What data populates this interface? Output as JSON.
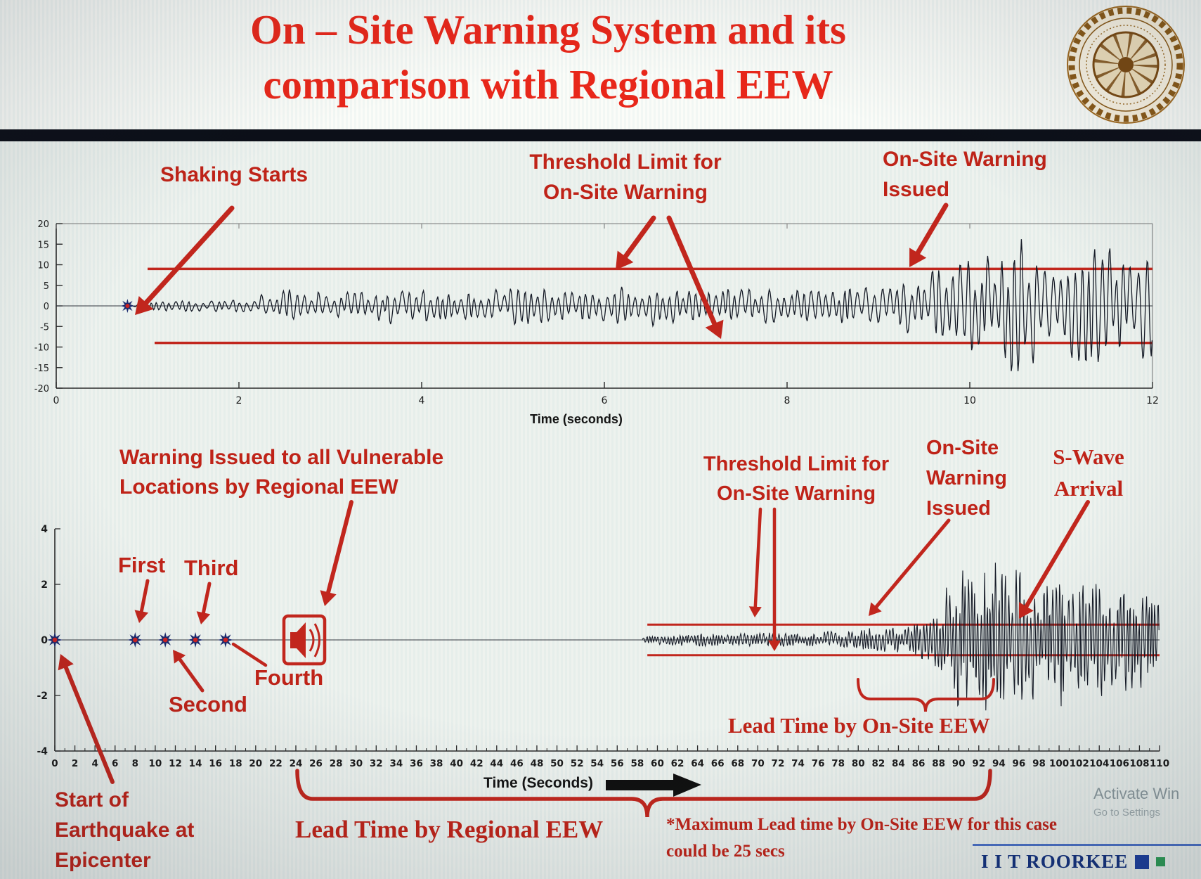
{
  "header": {
    "title_line1": "On – Site Warning System and its",
    "title_line2": "comparison with Regional EEW"
  },
  "icons": {
    "logo": "iit-roorkee-seal",
    "regional_warning": "alarm-speaker-icon",
    "p_wave_marker": "starburst-marker"
  },
  "colors": {
    "title_red": "#e8271a",
    "accent_red": "#bf2318",
    "threshold_red": "#c1261d",
    "waveform_ink": "#151a26",
    "brand_navy": "#14327e"
  },
  "top_chart": {
    "annotations": {
      "shaking_starts": "Shaking Starts",
      "threshold_limit_line1": "Threshold Limit for",
      "threshold_limit_line2": "On-Site Warning",
      "warning_issued_line1": "On-Site Warning",
      "warning_issued_line2": "Issued"
    }
  },
  "bottom_chart": {
    "annotations": {
      "regional_warning_line1": "Warning Issued to all Vulnerable",
      "regional_warning_line2": "Locations by Regional EEW",
      "first": "First",
      "second": "Second",
      "third": "Third",
      "fourth": "Fourth",
      "start_epicenter_line1": "Start of",
      "start_epicenter_line2": "Earthquake at",
      "start_epicenter_line3": "Epicenter",
      "threshold_limit_line1": "Threshold Limit for",
      "threshold_limit_line2": "On-Site Warning",
      "onsite_issued_line1": "On-Site",
      "onsite_issued_line2": "Warning",
      "onsite_issued_line3": "Issued",
      "s_wave_line1": "S-Wave",
      "s_wave_line2": "Arrival",
      "lead_time_onsite": "Lead Time by On-Site EEW",
      "lead_time_regional": "Lead Time by Regional EEW",
      "max_lead_note_line1": "*Maximum Lead time by On-Site EEW for this case",
      "max_lead_note_line2": "could be 25 secs"
    }
  },
  "footer": {
    "brand": "I I T ROORKEE",
    "activation_line1": "Activate Win",
    "activation_line2": "Go to Settings"
  },
  "chart_data": [
    {
      "type": "line",
      "name": "onsite-accelerogram",
      "title": "",
      "xlabel": "Time (seconds)",
      "ylabel": "",
      "xlim": [
        0,
        12
      ],
      "xticks": [
        0,
        2,
        4,
        6,
        8,
        10,
        12
      ],
      "ylim": [
        -20,
        20
      ],
      "yticks": [
        20,
        15,
        10,
        5,
        0,
        -5,
        -10,
        -15,
        -20
      ],
      "threshold_upper": 9,
      "threshold_lower": -9,
      "threshold_x_start": 1.0,
      "shaking_start_t": 0.78,
      "onsite_warning_issued_t": 9.3,
      "amplitude_envelope": [
        [
          0.78,
          0.4
        ],
        [
          1.1,
          1.3
        ],
        [
          2.1,
          1.6
        ],
        [
          2.5,
          4.8
        ],
        [
          3.1,
          3.2
        ],
        [
          3.7,
          4.6
        ],
        [
          4.4,
          3.6
        ],
        [
          5.1,
          4.8
        ],
        [
          5.8,
          3.8
        ],
        [
          6.4,
          5.2
        ],
        [
          7.0,
          4.0
        ],
        [
          7.7,
          4.6
        ],
        [
          8.3,
          3.8
        ],
        [
          8.9,
          5.0
        ],
        [
          9.3,
          6.5
        ],
        [
          9.7,
          9.5
        ],
        [
          10.1,
          13
        ],
        [
          10.5,
          17
        ],
        [
          10.9,
          13
        ],
        [
          11.3,
          16.5
        ],
        [
          11.7,
          13
        ],
        [
          12,
          15
        ]
      ]
    },
    {
      "type": "line",
      "name": "regional-vs-onsite-timeline",
      "title": "",
      "xlabel": "Time (Seconds)",
      "ylabel": "",
      "xlim": [
        0,
        110
      ],
      "xtick_step": 2,
      "ylim": [
        -4,
        4
      ],
      "yticks": [
        -4,
        -2,
        0,
        2,
        4
      ],
      "threshold_upper": 0.55,
      "threshold_lower": -0.55,
      "threshold_x_span": [
        59,
        110
      ],
      "p_wave_detections": [
        {
          "label": "Start of Earthquake at Epicenter",
          "t": 0
        },
        {
          "label": "First",
          "t": 8
        },
        {
          "label": "Second",
          "t": 11
        },
        {
          "label": "Third",
          "t": 14
        },
        {
          "label": "Fourth",
          "t": 17
        }
      ],
      "regional_warning_issued_t": 23,
      "onsite_warning_issued_t": 80,
      "s_wave_arrival_t": 93,
      "lead_time_regional_span": [
        24,
        93
      ],
      "lead_time_onsite_span": [
        80,
        93.5
      ],
      "max_lead_time_onsite_secs": 25,
      "amplitude_envelope": [
        [
          58.5,
          0.12
        ],
        [
          61,
          0.2
        ],
        [
          64,
          0.25
        ],
        [
          67,
          0.2
        ],
        [
          70,
          0.28
        ],
        [
          73,
          0.24
        ],
        [
          76,
          0.3
        ],
        [
          79,
          0.35
        ],
        [
          82,
          0.45
        ],
        [
          84,
          0.5
        ],
        [
          86,
          0.7
        ],
        [
          87.5,
          1.0
        ],
        [
          89,
          2.2
        ],
        [
          90.5,
          3.0
        ],
        [
          92,
          2.3
        ],
        [
          93.5,
          3.1
        ],
        [
          95,
          2.5
        ],
        [
          96.5,
          2.9
        ],
        [
          98,
          2.2
        ],
        [
          100,
          2.6
        ],
        [
          102,
          2.0
        ],
        [
          104,
          2.3
        ],
        [
          106,
          1.8
        ],
        [
          108,
          2.0
        ],
        [
          110,
          1.6
        ]
      ]
    }
  ]
}
